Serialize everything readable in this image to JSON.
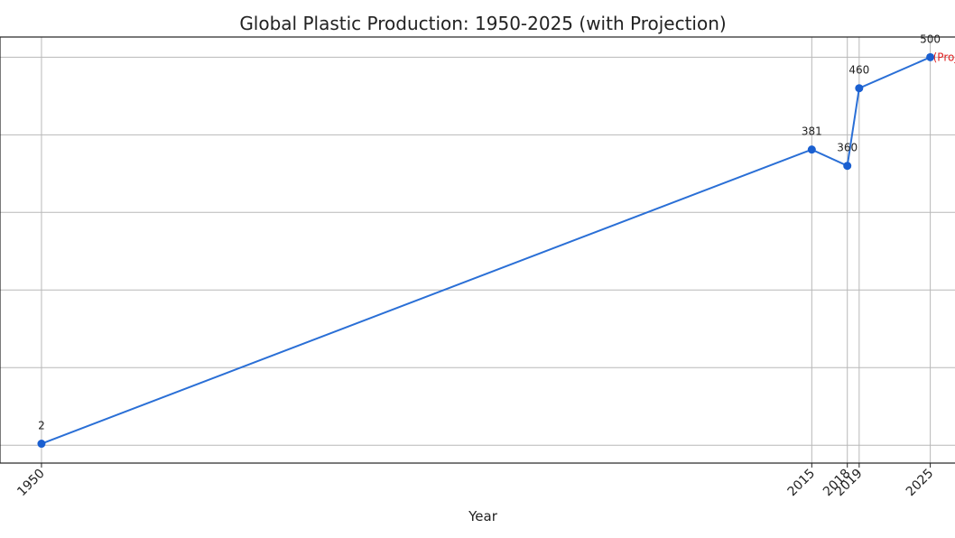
{
  "chart_data": {
    "type": "line",
    "title": "Global Plastic Production: 1950-2025 (with Projection)",
    "xlabel": "Year",
    "ylabel": "",
    "x": [
      1950,
      2015,
      2018,
      2019,
      2025
    ],
    "series": [
      {
        "name": "",
        "values": [
          2,
          381,
          360,
          460,
          500
        ],
        "color": "#1a5fd0"
      }
    ],
    "x_tick_labels": [
      "1950",
      "2015",
      "2018",
      "2019",
      "2025"
    ],
    "data_labels": [
      "2",
      "381",
      "360",
      "460",
      "500"
    ],
    "annotation": {
      "text": "(Proje",
      "x": 2025,
      "y": 500,
      "color": "#e02020"
    },
    "xlim": [
      1946.5,
      2028
    ],
    "ylim": [
      -23,
      526
    ],
    "y_grid": [
      0,
      100,
      200,
      300,
      400,
      500
    ],
    "grid": true,
    "legend": "none",
    "line_color": "#2a6fd6",
    "marker_color": "#1a5fd0"
  }
}
